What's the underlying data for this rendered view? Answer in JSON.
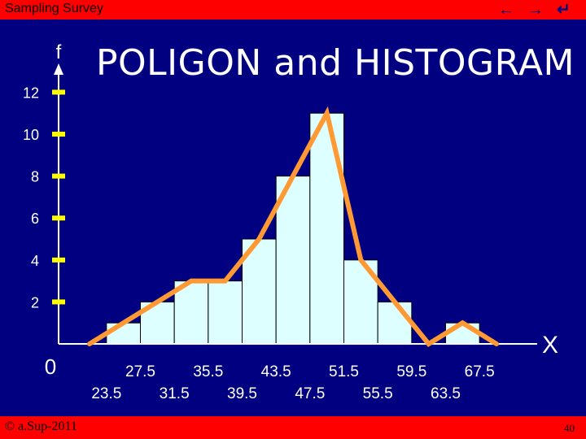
{
  "header": {
    "title": "Sampling Survey"
  },
  "footer": {
    "copyright": "© a.Sup-2011",
    "page_number": "40"
  },
  "chart_data": {
    "type": "bar",
    "title": "POLIGON and HISTOGRAM",
    "ylabel": "f",
    "xlabel": "X",
    "origin_label": "0",
    "ylim": [
      0,
      12
    ],
    "yticks": [
      2,
      4,
      6,
      8,
      10,
      12
    ],
    "boundaries_upper_row": [
      "27.5",
      "35.5",
      "43.5",
      "51.5",
      "59.5",
      "67.5"
    ],
    "boundaries_lower_row": [
      "23.5",
      "31.5",
      "39.5",
      "47.5",
      "55.5",
      "63.5"
    ],
    "bins": [
      {
        "lo": 23.5,
        "hi": 27.5,
        "f": 1
      },
      {
        "lo": 27.5,
        "hi": 31.5,
        "f": 2
      },
      {
        "lo": 31.5,
        "hi": 35.5,
        "f": 3
      },
      {
        "lo": 35.5,
        "hi": 39.5,
        "f": 3
      },
      {
        "lo": 39.5,
        "hi": 43.5,
        "f": 5
      },
      {
        "lo": 43.5,
        "hi": 47.5,
        "f": 8
      },
      {
        "lo": 47.5,
        "hi": 51.5,
        "f": 11
      },
      {
        "lo": 51.5,
        "hi": 55.5,
        "f": 4
      },
      {
        "lo": 55.5,
        "hi": 59.5,
        "f": 2
      },
      {
        "lo": 59.5,
        "hi": 63.5,
        "f": 0
      },
      {
        "lo": 63.5,
        "hi": 67.5,
        "f": 1
      }
    ],
    "polygon": {
      "x": [
        21.5,
        25.5,
        29.5,
        33.5,
        37.5,
        41.5,
        45.5,
        49.5,
        53.5,
        57.5,
        61.5,
        65.5,
        69.5
      ],
      "y": [
        0,
        1,
        2,
        3,
        3,
        5,
        8,
        11,
        4,
        2,
        0,
        1,
        0
      ]
    },
    "colors": {
      "bar_fill": "#ddffff",
      "bar_stroke": "#000000",
      "polygon": "#ff9933",
      "axis": "#ffffff",
      "tick": "#ffff00",
      "background": "#000080"
    }
  }
}
